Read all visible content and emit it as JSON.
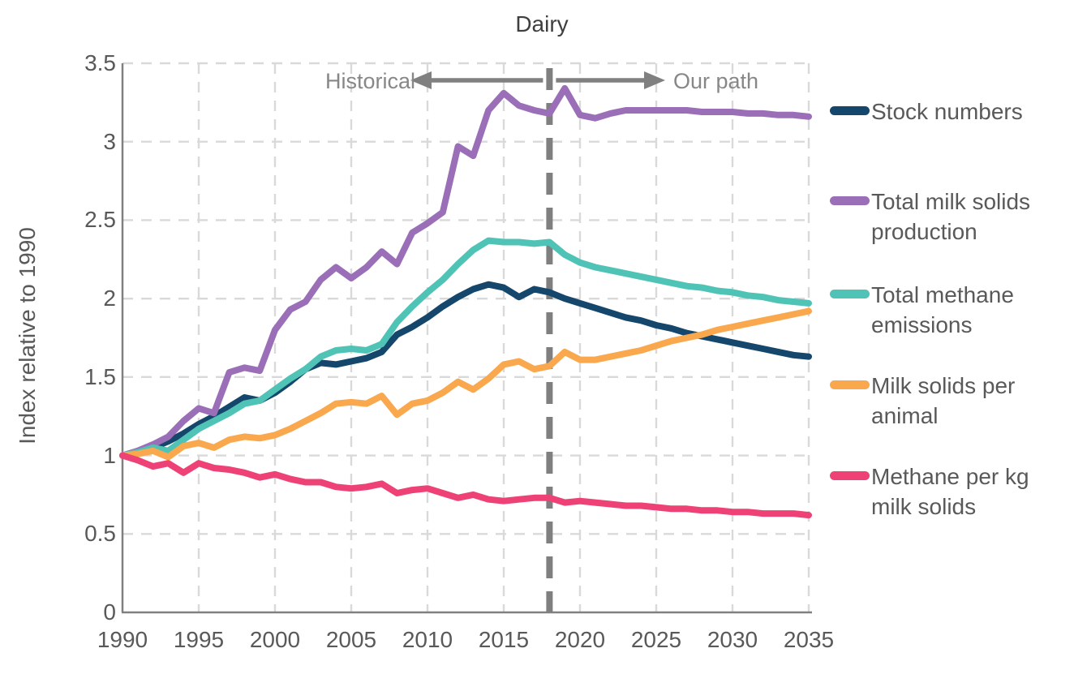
{
  "chart_data": {
    "type": "line",
    "title": "Dairy",
    "ylabel": "Index relative to 1990",
    "xlabel": "",
    "ylim": [
      0,
      3.5
    ],
    "xlim": [
      1990,
      2035
    ],
    "y_ticks": [
      0,
      0.5,
      1,
      1.5,
      2,
      2.5,
      3,
      3.5
    ],
    "x_ticks": [
      1990,
      1995,
      2000,
      2005,
      2010,
      2015,
      2020,
      2025,
      2030,
      2035
    ],
    "grid": "dashed-both-axes",
    "legend_position": "right",
    "divider": {
      "x": 2018,
      "label_left": "Historical",
      "label_right": "Our path"
    },
    "x": [
      1990,
      1991,
      1992,
      1993,
      1994,
      1995,
      1996,
      1997,
      1998,
      1999,
      2000,
      2001,
      2002,
      2003,
      2004,
      2005,
      2006,
      2007,
      2008,
      2009,
      2010,
      2011,
      2012,
      2013,
      2014,
      2015,
      2016,
      2017,
      2018,
      2019,
      2020,
      2021,
      2022,
      2023,
      2024,
      2025,
      2026,
      2027,
      2028,
      2029,
      2030,
      2031,
      2032,
      2033,
      2034,
      2035
    ],
    "series": [
      {
        "name": "Stock numbers",
        "label_lines": [
          "Stock numbers"
        ],
        "color": "#14476B",
        "values": [
          1.0,
          1.02,
          1.05,
          1.09,
          1.14,
          1.2,
          1.25,
          1.31,
          1.37,
          1.35,
          1.4,
          1.47,
          1.55,
          1.59,
          1.58,
          1.6,
          1.62,
          1.66,
          1.77,
          1.82,
          1.88,
          1.95,
          2.01,
          2.06,
          2.09,
          2.07,
          2.01,
          2.06,
          2.04,
          2.0,
          1.97,
          1.94,
          1.91,
          1.88,
          1.86,
          1.83,
          1.81,
          1.78,
          1.76,
          1.74,
          1.72,
          1.7,
          1.68,
          1.66,
          1.64,
          1.63
        ]
      },
      {
        "name": "Total milk solids production",
        "label_lines": [
          "Total milk solids",
          "production"
        ],
        "color": "#9B6FB8",
        "values": [
          1.0,
          1.03,
          1.07,
          1.12,
          1.22,
          1.3,
          1.27,
          1.53,
          1.56,
          1.54,
          1.8,
          1.93,
          1.98,
          2.12,
          2.2,
          2.13,
          2.2,
          2.3,
          2.22,
          2.42,
          2.48,
          2.55,
          2.97,
          2.91,
          3.2,
          3.31,
          3.23,
          3.2,
          3.18,
          3.34,
          3.17,
          3.15,
          3.18,
          3.2,
          3.2,
          3.2,
          3.2,
          3.2,
          3.19,
          3.19,
          3.19,
          3.18,
          3.18,
          3.17,
          3.17,
          3.16
        ]
      },
      {
        "name": "Total methane emissions",
        "label_lines": [
          "Total methane",
          "emissions"
        ],
        "color": "#4FC3B5",
        "values": [
          1.0,
          1.02,
          1.05,
          1.03,
          1.1,
          1.17,
          1.22,
          1.27,
          1.33,
          1.35,
          1.42,
          1.49,
          1.55,
          1.63,
          1.67,
          1.68,
          1.67,
          1.71,
          1.85,
          1.95,
          2.04,
          2.12,
          2.22,
          2.31,
          2.37,
          2.36,
          2.36,
          2.35,
          2.36,
          2.28,
          2.23,
          2.2,
          2.18,
          2.16,
          2.14,
          2.12,
          2.1,
          2.08,
          2.07,
          2.05,
          2.04,
          2.02,
          2.01,
          1.99,
          1.98,
          1.97
        ]
      },
      {
        "name": "Milk solids per animal",
        "label_lines": [
          "Milk solids per",
          "animal"
        ],
        "color": "#F9A84D",
        "values": [
          1.0,
          1.01,
          1.03,
          0.99,
          1.06,
          1.08,
          1.05,
          1.1,
          1.12,
          1.11,
          1.13,
          1.17,
          1.22,
          1.27,
          1.33,
          1.34,
          1.33,
          1.38,
          1.26,
          1.33,
          1.35,
          1.4,
          1.47,
          1.42,
          1.49,
          1.58,
          1.6,
          1.55,
          1.57,
          1.66,
          1.61,
          1.61,
          1.63,
          1.65,
          1.67,
          1.7,
          1.73,
          1.75,
          1.77,
          1.8,
          1.82,
          1.84,
          1.86,
          1.88,
          1.9,
          1.92
        ]
      },
      {
        "name": "Methane per kg milk solids",
        "label_lines": [
          "Methane per kg",
          "milk solids"
        ],
        "color": "#EE4277",
        "values": [
          1.0,
          0.97,
          0.93,
          0.95,
          0.89,
          0.95,
          0.92,
          0.91,
          0.89,
          0.86,
          0.88,
          0.85,
          0.83,
          0.83,
          0.8,
          0.79,
          0.8,
          0.82,
          0.76,
          0.78,
          0.79,
          0.76,
          0.73,
          0.75,
          0.72,
          0.71,
          0.72,
          0.73,
          0.73,
          0.7,
          0.71,
          0.7,
          0.69,
          0.68,
          0.68,
          0.67,
          0.66,
          0.66,
          0.65,
          0.65,
          0.64,
          0.64,
          0.63,
          0.63,
          0.63,
          0.62
        ]
      }
    ]
  },
  "colors": {
    "grid": "#D9D9D9",
    "axis": "#808080",
    "divider": "#7F7F7F",
    "arrow": "#808080",
    "tick_text": "#595959",
    "title_text": "#3F3F3F",
    "annotation_text": "#878787"
  },
  "legend_items_order": [
    "Stock numbers",
    "Total milk solids production",
    "Total methane emissions",
    "Milk solids per animal",
    "Methane per kg milk solids"
  ]
}
